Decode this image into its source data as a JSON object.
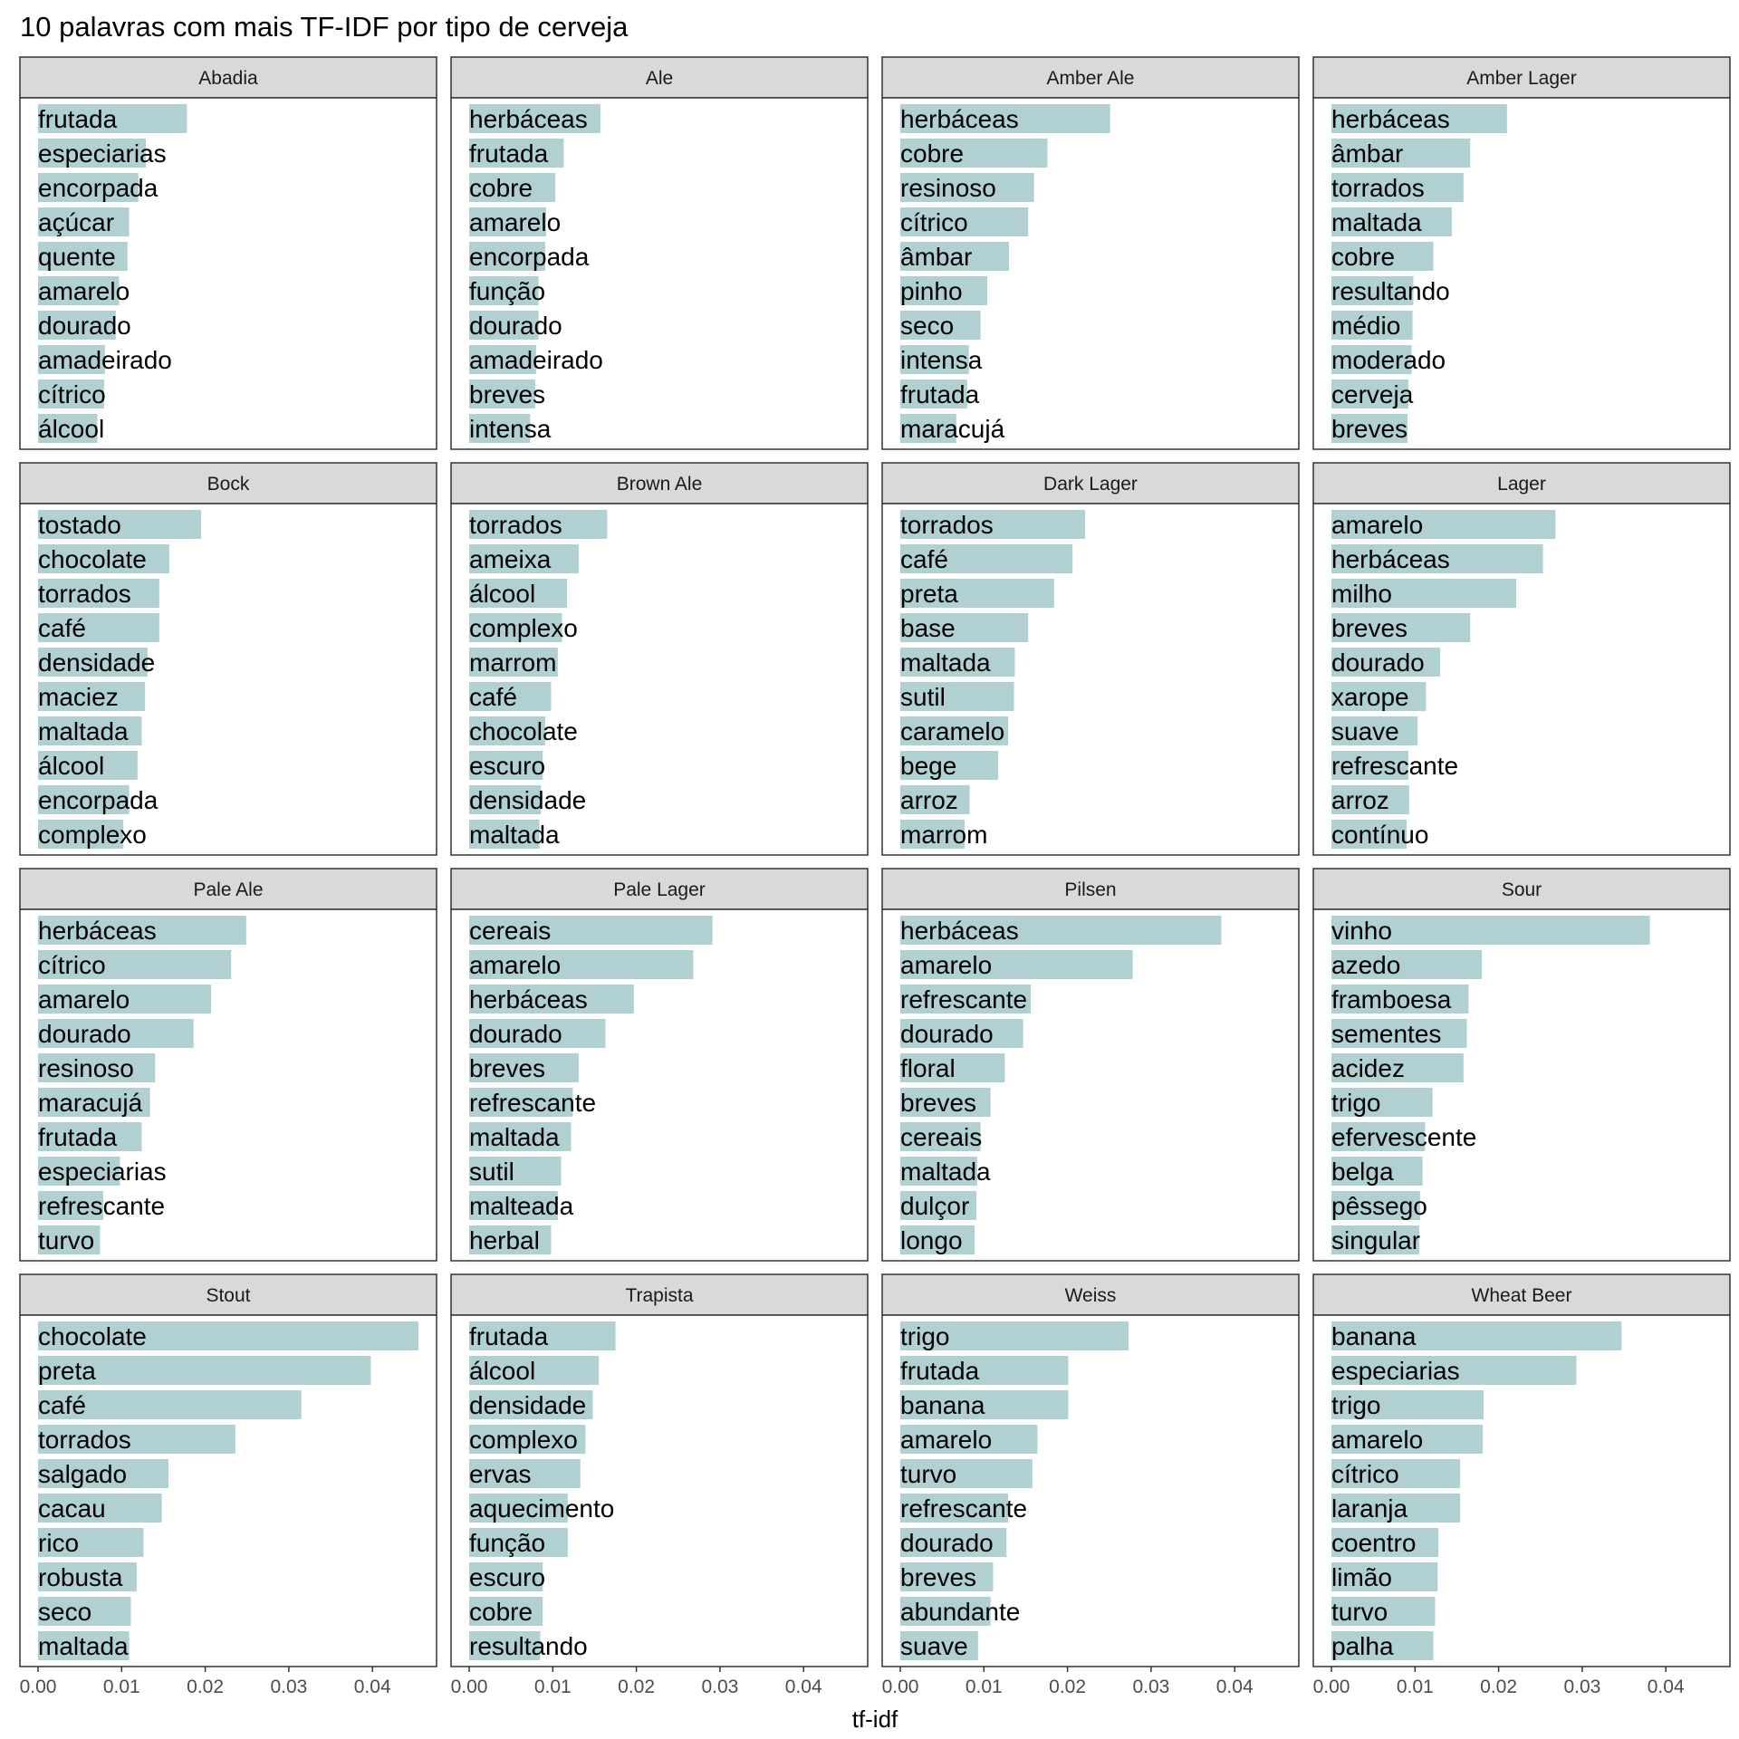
{
  "chart_data": {
    "type": "bar",
    "orientation": "horizontal",
    "layout": "facet grid 4x4, shared x axis",
    "title": "10 palavras com mais TF-IDF por tipo de cerveja",
    "xlabel": "tf-idf",
    "ylabel": "",
    "xlim": [
      0,
      0.0475
    ],
    "x_ticks": [
      0,
      0.01,
      0.02,
      0.03,
      0.04
    ],
    "x_tick_labels": [
      "0.00",
      "0.01",
      "0.02",
      "0.03",
      "0.04"
    ],
    "bar_color": "#b0d0d2",
    "strip_color": "#d9d9d9",
    "grid": false,
    "legend": "none",
    "facets": [
      {
        "name": "Abadia",
        "words": [
          "frutada",
          "especiarias",
          "encorpada",
          "açúcar",
          "quente",
          "amarelo",
          "dourado",
          "amadeirado",
          "cítrico",
          "álcool"
        ],
        "values": [
          0.0178,
          0.0129,
          0.012,
          0.0109,
          0.0107,
          0.0097,
          0.0093,
          0.008,
          0.0079,
          0.0071
        ]
      },
      {
        "name": "Ale",
        "words": [
          "herbáceas",
          "frutada",
          "cobre",
          "amarelo",
          "encorpada",
          "função",
          "dourado",
          "amadeirado",
          "breves",
          "intensa"
        ],
        "values": [
          0.0157,
          0.0113,
          0.0103,
          0.0092,
          0.0091,
          0.0083,
          0.0083,
          0.008,
          0.0079,
          0.0073
        ]
      },
      {
        "name": "Amber Ale",
        "words": [
          "herbáceas",
          "cobre",
          "resinoso",
          "cítrico",
          "âmbar",
          "pinho",
          "seco",
          "intensa",
          "frutada",
          "maracujá"
        ],
        "values": [
          0.0251,
          0.0176,
          0.016,
          0.0153,
          0.013,
          0.0104,
          0.0096,
          0.0082,
          0.008,
          0.0067
        ]
      },
      {
        "name": "Amber Lager",
        "words": [
          "herbáceas",
          "âmbar",
          "torrados",
          "maltada",
          "cobre",
          "resultando",
          "médio",
          "moderado",
          "cerveja",
          "breves"
        ],
        "values": [
          0.021,
          0.0166,
          0.0158,
          0.0144,
          0.0122,
          0.0098,
          0.0097,
          0.0096,
          0.0092,
          0.0091
        ]
      },
      {
        "name": "Bock",
        "words": [
          "tostado",
          "chocolate",
          "torrados",
          "café",
          "densidade",
          "maciez",
          "maltada",
          "álcool",
          "encorpada",
          "complexo"
        ],
        "values": [
          0.0195,
          0.0157,
          0.0145,
          0.0145,
          0.0131,
          0.0128,
          0.0124,
          0.0119,
          0.0109,
          0.0102
        ]
      },
      {
        "name": "Brown Ale",
        "words": [
          "torrados",
          "ameixa",
          "álcool",
          "complexo",
          "marrom",
          "café",
          "chocolate",
          "escuro",
          "densidade",
          "maltada"
        ],
        "values": [
          0.0165,
          0.0131,
          0.0117,
          0.0111,
          0.0106,
          0.0098,
          0.0091,
          0.0088,
          0.0086,
          0.0084
        ]
      },
      {
        "name": "Dark Lager",
        "words": [
          "torrados",
          "café",
          "preta",
          "base",
          "maltada",
          "sutil",
          "caramelo",
          "bege",
          "arroz",
          "marrom"
        ],
        "values": [
          0.0221,
          0.0206,
          0.0184,
          0.0153,
          0.0137,
          0.0136,
          0.0129,
          0.0117,
          0.0083,
          0.0077
        ]
      },
      {
        "name": "Lager",
        "words": [
          "amarelo",
          "herbáceas",
          "milho",
          "breves",
          "dourado",
          "xarope",
          "suave",
          "refrescante",
          "arroz",
          "contínuo"
        ],
        "values": [
          0.0268,
          0.0253,
          0.0221,
          0.0166,
          0.013,
          0.0113,
          0.0103,
          0.0092,
          0.0093,
          0.009
        ]
      },
      {
        "name": "Pale Ale",
        "words": [
          "herbáceas",
          "cítrico",
          "amarelo",
          "dourado",
          "resinoso",
          "maracujá",
          "frutada",
          "especiarias",
          "refrescante",
          "turvo"
        ],
        "values": [
          0.0249,
          0.0231,
          0.0207,
          0.0186,
          0.014,
          0.0134,
          0.0124,
          0.0098,
          0.0078,
          0.0074
        ]
      },
      {
        "name": "Pale Lager",
        "words": [
          "cereais",
          "amarelo",
          "herbáceas",
          "dourado",
          "breves",
          "refrescante",
          "maltada",
          "sutil",
          "malteada",
          "herbal"
        ],
        "values": [
          0.0291,
          0.0268,
          0.0197,
          0.0163,
          0.0131,
          0.0124,
          0.0122,
          0.011,
          0.0106,
          0.0098
        ]
      },
      {
        "name": "Pilsen",
        "words": [
          "herbáceas",
          "amarelo",
          "refrescante",
          "dourado",
          "floral",
          "breves",
          "cereais",
          "maltada",
          "dulçor",
          "longo"
        ],
        "values": [
          0.0384,
          0.0278,
          0.0156,
          0.0147,
          0.0125,
          0.0108,
          0.0096,
          0.0092,
          0.0091,
          0.0089
        ]
      },
      {
        "name": "Sour",
        "words": [
          "vinho",
          "azedo",
          "framboesa",
          "sementes",
          "acidez",
          "trigo",
          "efervescente",
          "belga",
          "pêssego",
          "singular"
        ],
        "values": [
          0.0381,
          0.018,
          0.0164,
          0.0162,
          0.0158,
          0.0121,
          0.0112,
          0.0109,
          0.0106,
          0.0105
        ]
      },
      {
        "name": "Stout",
        "words": [
          "chocolate",
          "preta",
          "café",
          "torrados",
          "salgado",
          "cacau",
          "rico",
          "robusta",
          "seco",
          "maltada"
        ],
        "values": [
          0.0455,
          0.0398,
          0.0315,
          0.0236,
          0.0156,
          0.0148,
          0.0126,
          0.0118,
          0.0111,
          0.0109
        ]
      },
      {
        "name": "Trapista",
        "words": [
          "frutada",
          "álcool",
          "densidade",
          "complexo",
          "ervas",
          "aquecimento",
          "função",
          "escuro",
          "cobre",
          "resultando"
        ],
        "values": [
          0.0175,
          0.0155,
          0.0148,
          0.0139,
          0.0133,
          0.0118,
          0.0118,
          0.0088,
          0.0088,
          0.0085
        ]
      },
      {
        "name": "Weiss",
        "words": [
          "trigo",
          "frutada",
          "banana",
          "amarelo",
          "turvo",
          "refrescante",
          "dourado",
          "breves",
          "abundante",
          "suave"
        ],
        "values": [
          0.0273,
          0.0201,
          0.0201,
          0.0164,
          0.0158,
          0.0129,
          0.0127,
          0.0111,
          0.0108,
          0.0093
        ]
      },
      {
        "name": "Wheat Beer",
        "words": [
          "banana",
          "especiarias",
          "trigo",
          "amarelo",
          "cítrico",
          "laranja",
          "coentro",
          "limão",
          "turvo",
          "palha"
        ],
        "values": [
          0.0347,
          0.0293,
          0.0182,
          0.0181,
          0.0154,
          0.0154,
          0.0128,
          0.0127,
          0.0124,
          0.0122
        ]
      }
    ]
  }
}
